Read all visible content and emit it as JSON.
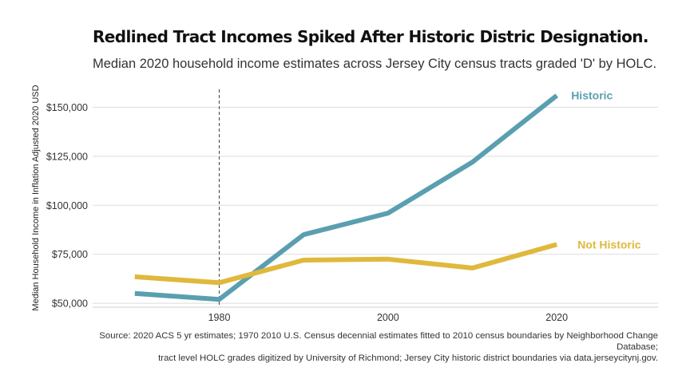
{
  "header": {
    "title": "Redlined Tract Incomes Spiked After Historic Distric Designation.",
    "subtitle": "Median 2020 household income estimates across Jersey City census tracts graded 'D' by HOLC."
  },
  "caption": {
    "line1": "Source: 2020 ACS 5 yr estimates; 1970 2010 U.S. Census decennial estimates fitted to 2010 census boundaries by Neighborhood Change Database;",
    "line2": "tract level HOLC grades digitized by University of Richmond; Jersey City historic district boundaries via data.jerseycitynj.gov."
  },
  "chart_data": {
    "type": "line",
    "title": "Redlined Tract Incomes Spiked After Historic Distric Designation.",
    "subtitle": "Median 2020 household income estimates across Jersey City census tracts graded 'D' by HOLC.",
    "xlabel": "",
    "ylabel": "Median Household Income in Inflation Adjusted 2020 USD",
    "xlim": [
      1965,
      2032
    ],
    "ylim": [
      48000,
      157500
    ],
    "x_ticks": [
      1980,
      2000,
      2020
    ],
    "x_tick_labels": [
      "1980",
      "2000",
      "2020"
    ],
    "y_ticks": [
      50000,
      75000,
      100000,
      125000,
      150000
    ],
    "y_tick_labels": [
      "$50,000",
      "$75,000",
      "$100,000",
      "$125,000",
      "$150,000"
    ],
    "grid": "horizontal",
    "legend": "direct labels at line ends",
    "reference_line": {
      "x": 1980,
      "style": "dashed"
    },
    "series": [
      {
        "name": "Historic",
        "color": "#5a9fb0",
        "x": [
          1970,
          1980,
          1990,
          2000,
          2010,
          2020
        ],
        "values": [
          55000,
          52000,
          85000,
          96000,
          122000,
          156000
        ]
      },
      {
        "name": "Not Historic",
        "color": "#e0b83c",
        "x": [
          1970,
          1980,
          1990,
          2000,
          2010,
          2020
        ],
        "values": [
          63500,
          60500,
          72000,
          72500,
          68000,
          80000
        ]
      }
    ]
  }
}
